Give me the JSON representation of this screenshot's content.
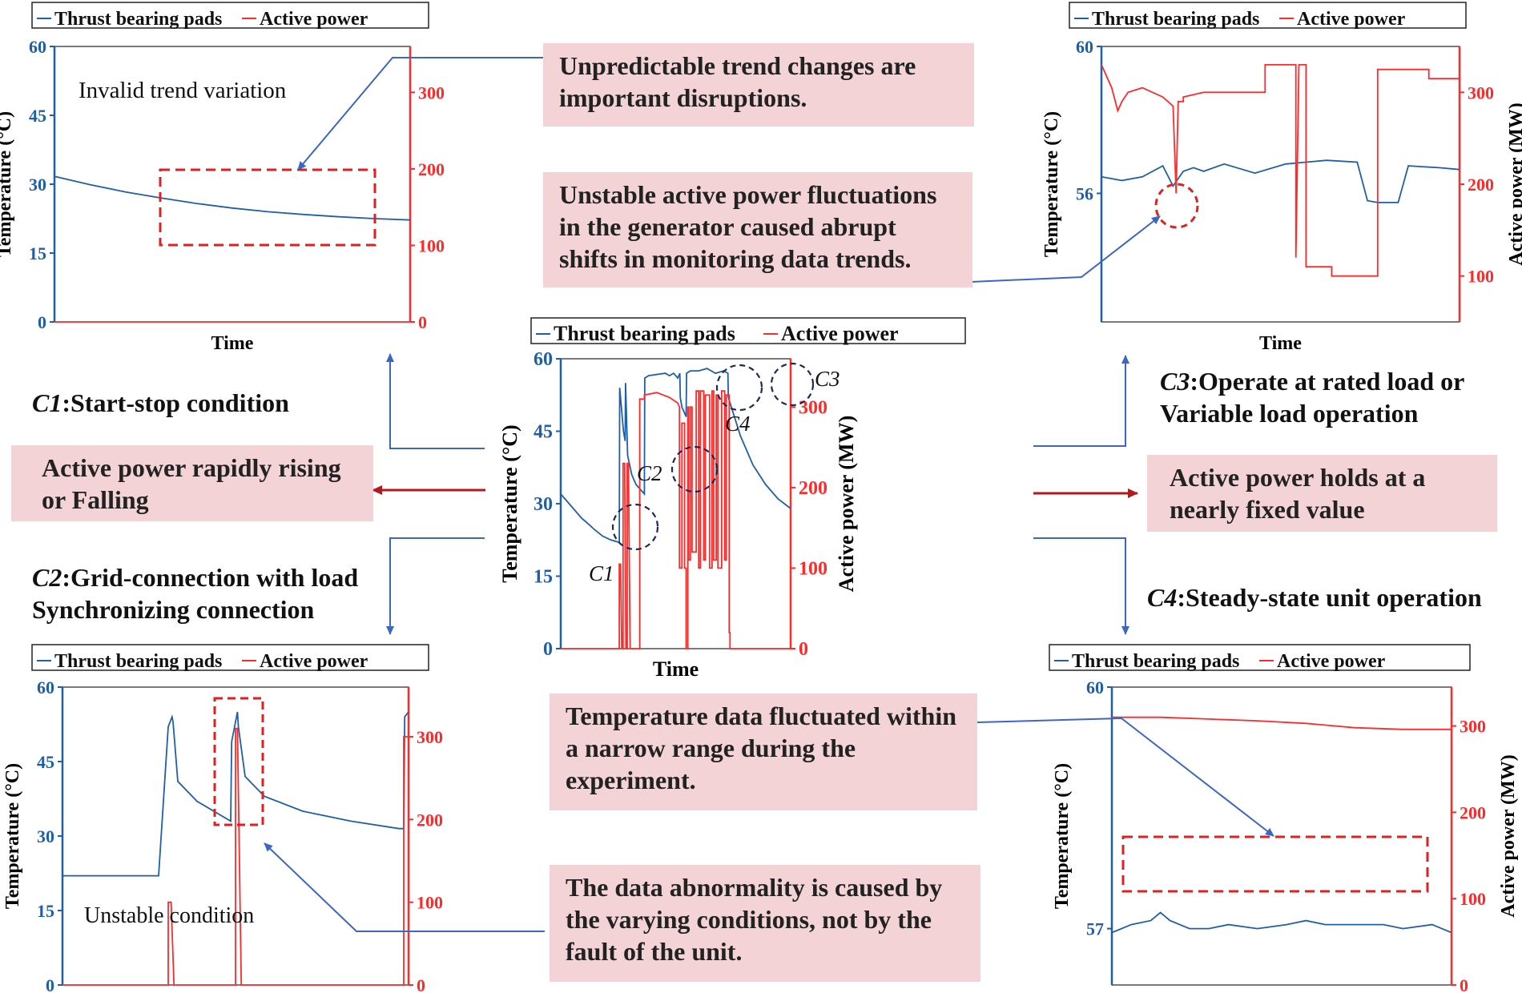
{
  "legend": {
    "temp": "Thrust bearing pads",
    "power": "Active power"
  },
  "axis": {
    "ylabel_left": "Temperature (°C)",
    "ylabel_right": "Active power (MW)",
    "xlabel": "Time"
  },
  "callouts": {
    "invalid_trend": "Invalid trend variation",
    "unpredictable": "Unpredictable trend changes are important disruptions.",
    "unstable_power": "Unstable active power fluctuations in the generator caused abrupt shifts in monitoring data trends.",
    "rising_falling": "Active power rapidly rising or Falling",
    "holds_fixed": "Active power holds at a nearly fixed value",
    "temp_narrow": "Temperature data fluctuated within a narrow range during the experiment.",
    "abnormality": "The data abnormality is caused by the varying conditions, not by the fault of the unit.",
    "unstable_condition": "Unstable condition"
  },
  "conditions": {
    "c1": {
      "code": "C1",
      "text": ":Start-stop condition"
    },
    "c2": {
      "code": "C2",
      "text": ":Grid-connection with load",
      "text2": "Synchronizing connection"
    },
    "c3": {
      "code": "C3",
      "text": ":Operate at rated load or",
      "text2": "Variable load operation"
    },
    "c4": {
      "code": "C4",
      "text": ":Steady-state unit operation"
    }
  },
  "colors": {
    "temp": "#1f5fa8",
    "power": "#ff2a2a",
    "callout_bg": "#f3d3d6",
    "arrow_blue": "#3a66c4",
    "arrow_red": "#b01a1a"
  },
  "chart_data": [
    {
      "id": "center",
      "type": "line",
      "series": [
        {
          "name": "Thrust bearing pads",
          "axis": "left",
          "x": [
            0,
            3,
            5,
            7,
            8,
            9,
            10,
            12,
            14,
            14.1,
            15,
            15.4,
            15.5,
            16,
            17,
            18,
            19,
            20,
            20.1,
            21,
            25,
            26,
            27,
            28,
            28.5,
            28.6,
            29,
            30,
            30.1,
            31,
            33,
            35,
            37,
            39,
            40,
            40.1,
            43,
            46,
            49,
            52,
            55
          ],
          "y": [
            32,
            29,
            27,
            25.5,
            24.7,
            24,
            23.3,
            22.5,
            22,
            54,
            45,
            43,
            55,
            40,
            36,
            34,
            33,
            32,
            56,
            56.5,
            57,
            56.5,
            57,
            56,
            57,
            52,
            50,
            48,
            57,
            57.5,
            57.5,
            58,
            57,
            57.5,
            57,
            52,
            44,
            38,
            34,
            31,
            29
          ]
        },
        {
          "name": "Active power",
          "axis": "right",
          "x": [
            0,
            14,
            14,
            14.3,
            14.6,
            14.9,
            14.9,
            15.3,
            15.6,
            15.9,
            15.9,
            16.2,
            16.6,
            16.9,
            16.9,
            18.9,
            18.9,
            20,
            20,
            23,
            26,
            28,
            28.4,
            28.4,
            29,
            29,
            29.6,
            29.6,
            30,
            30,
            30.4,
            30.4,
            30.6,
            30.6,
            31,
            31,
            31.4,
            31.4,
            32.4,
            32.4,
            33,
            33,
            33.4,
            33.4,
            34.2,
            34.2,
            34.6,
            34.6,
            35.6,
            35.6,
            36.2,
            36.2,
            36.6,
            36.6,
            37.2,
            37.2,
            37.6,
            37.6,
            38.5,
            38.5,
            39.2,
            39.2,
            39.6,
            39.6,
            40.3,
            40.3,
            40.5,
            40.5,
            55
          ],
          "y": [
            0,
            0,
            105,
            105,
            0,
            0,
            230,
            230,
            0,
            0,
            230,
            230,
            0,
            0,
            0,
            0,
            310,
            310,
            315,
            318,
            312,
            305,
            300,
            100,
            100,
            280,
            280,
            100,
            100,
            0,
            0,
            300,
            300,
            110,
            110,
            300,
            300,
            120,
            120,
            320,
            320,
            100,
            100,
            320,
            320,
            110,
            110,
            315,
            315,
            100,
            100,
            320,
            320,
            110,
            110,
            315,
            315,
            100,
            100,
            320,
            320,
            110,
            110,
            315,
            315,
            20,
            20,
            0,
            0
          ]
        }
      ],
      "xlim": [
        0,
        55
      ],
      "ylim_left": [
        0,
        60
      ],
      "ylim_right": [
        0,
        360
      ],
      "yticks_left": [
        0,
        15,
        30,
        45,
        60
      ],
      "yticks_right": [
        0,
        100,
        200,
        300
      ],
      "annotations": [
        "C1",
        "C2",
        "C3",
        "C4"
      ]
    },
    {
      "id": "top-left",
      "type": "line",
      "series": [
        {
          "name": "Thrust bearing pads",
          "axis": "left",
          "x": [
            0,
            1,
            2,
            3,
            4,
            5,
            6,
            7,
            8,
            9,
            10
          ],
          "y": [
            31.7,
            29.9,
            28.3,
            27.0,
            25.8,
            24.8,
            24.0,
            23.4,
            22.9,
            22.5,
            22.2
          ]
        },
        {
          "name": "Active power",
          "axis": "right",
          "x": [
            0,
            10
          ],
          "y": [
            0,
            0
          ]
        }
      ],
      "xlim": [
        0,
        10
      ],
      "ylim_left": [
        0,
        60
      ],
      "ylim_right": [
        0,
        360
      ],
      "yticks_left": [
        0,
        15,
        30,
        45,
        60
      ],
      "yticks_right": [
        0,
        100,
        200,
        300
      ]
    },
    {
      "id": "top-right",
      "type": "line",
      "series": [
        {
          "name": "Thrust bearing pads",
          "axis": "left",
          "x": [
            0,
            2,
            4,
            6,
            7,
            8,
            9,
            10,
            12,
            15,
            18,
            20,
            22,
            25,
            26,
            27,
            29,
            30,
            33,
            35
          ],
          "y": [
            56.45,
            56.35,
            56.45,
            56.75,
            56.2,
            56.6,
            56.7,
            56.6,
            56.8,
            56.55,
            56.8,
            56.85,
            56.9,
            56.85,
            55.8,
            55.75,
            55.75,
            56.75,
            56.7,
            56.65
          ]
        },
        {
          "name": "Active power",
          "axis": "right",
          "x": [
            0,
            1,
            1.6,
            2,
            2.6,
            4,
            6,
            7,
            7.3,
            7.5,
            8,
            8,
            10,
            15,
            16,
            16,
            19,
            19,
            19.3,
            20,
            20,
            22.5,
            22.5,
            26,
            26,
            27,
            27,
            32,
            32,
            35
          ],
          "y": [
            330,
            305,
            280,
            290,
            300,
            305,
            295,
            285,
            190,
            290,
            290,
            295,
            300,
            300,
            300,
            330,
            330,
            120,
            330,
            330,
            110,
            110,
            100,
            100,
            100,
            100,
            325,
            325,
            315,
            315
          ]
        }
      ],
      "xlim": [
        0,
        35
      ],
      "ylim_left": [
        52.5,
        60
      ],
      "ylim_right": [
        50,
        350
      ],
      "yticks_left": [
        56,
        60
      ],
      "yticks_right": [
        100,
        200,
        300
      ]
    },
    {
      "id": "bottom-left",
      "type": "line",
      "series": [
        {
          "name": "Thrust bearing pads",
          "axis": "left",
          "x": [
            0,
            10,
            10,
            11,
            11.4,
            11.5,
            12,
            14,
            17.5,
            17.6,
            18,
            18.2,
            18.3,
            19,
            21,
            25,
            30,
            35,
            35.5,
            35.6,
            36
          ],
          "y": [
            22,
            22,
            22,
            52,
            54,
            53,
            41,
            37,
            33,
            49,
            53,
            55,
            52,
            42,
            38,
            35,
            33,
            31.5,
            31.5,
            54,
            55
          ]
        },
        {
          "name": "Active power",
          "axis": "right",
          "x": [
            0,
            11,
            11,
            11.3,
            11.6,
            11.6,
            18,
            18,
            18.2,
            18.6,
            18.6,
            35.5,
            35.5,
            36
          ],
          "y": [
            0,
            0,
            100,
            100,
            0,
            0,
            0,
            310,
            310,
            0,
            0,
            0,
            300,
            300
          ]
        }
      ],
      "xlim": [
        0,
        36
      ],
      "ylim_left": [
        0,
        60
      ],
      "ylim_right": [
        0,
        360
      ],
      "yticks_left": [
        0,
        15,
        30,
        45,
        60
      ],
      "yticks_right": [
        0,
        100,
        200,
        300
      ]
    },
    {
      "id": "bottom-right",
      "type": "line",
      "series": [
        {
          "name": "Thrust bearing pads",
          "axis": "left",
          "x": [
            0,
            2,
            4,
            5,
            6,
            8,
            10,
            12,
            15,
            18,
            20,
            22,
            25,
            28,
            30,
            33,
            35
          ],
          "y": [
            56.95,
            57.05,
            57.1,
            57.2,
            57.1,
            57.0,
            57.0,
            57.05,
            57.0,
            57.05,
            57.1,
            57.05,
            57.05,
            57.05,
            57.0,
            57.05,
            56.95
          ]
        },
        {
          "name": "Active power",
          "axis": "right",
          "x": [
            0,
            5,
            10,
            15,
            20,
            25,
            30,
            35
          ],
          "y": [
            310,
            310,
            308,
            306,
            303,
            298,
            296,
            296
          ]
        }
      ],
      "xlim": [
        0,
        35
      ],
      "ylim_left": [
        56.3,
        60
      ],
      "ylim_right": [
        0,
        345
      ],
      "yticks_left": [
        57,
        60
      ],
      "yticks_right": [
        0,
        100,
        200,
        300
      ]
    }
  ]
}
